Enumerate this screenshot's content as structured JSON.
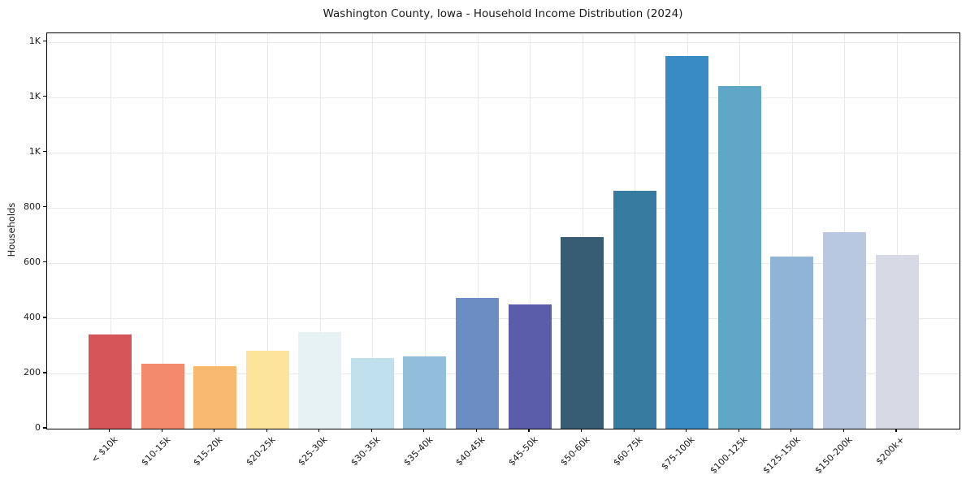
{
  "chart_data": {
    "type": "bar",
    "title": "Washington County, Iowa - Household Income Distribution (2024)",
    "ylabel": "Households",
    "categories": [
      "< $10k",
      "$10-15k",
      "$15-20k",
      "$20-25k",
      "$25-30k",
      "$30-35k",
      "$35-40k",
      "$40-45k",
      "$45-50k",
      "$50-60k",
      "$60-75k",
      "$75-100k",
      "$100-125k",
      "$125-150k",
      "$150-200k",
      "$200k+"
    ],
    "values": [
      340,
      236,
      226,
      282,
      349,
      255,
      262,
      474,
      451,
      694,
      863,
      1351,
      1242,
      623,
      712,
      630
    ],
    "bar_colors": [
      "#d65558",
      "#f48a6c",
      "#f8b86d",
      "#fce49c",
      "#e7f2f5",
      "#c0e0ed",
      "#92bedb",
      "#6b8dc2",
      "#5c5daa",
      "#365d71",
      "#367ba0",
      "#388cc3",
      "#5fa6c7",
      "#8fb4d6",
      "#b7c8e0",
      "#d7d9e4"
    ],
    "yticks": {
      "values": [
        0,
        200,
        400,
        600,
        800,
        1000,
        1200,
        1400
      ],
      "labels": [
        "0",
        "200",
        "400",
        "600",
        "800",
        "1K",
        "1K",
        "1K"
      ]
    },
    "ylim": [
      0,
      1432
    ],
    "grid": "both-light",
    "legend": "none",
    "colors": {
      "background": "#ffffff",
      "text": "#1a1a1a",
      "grid": "#e9e9e9",
      "spine": "#000000"
    }
  }
}
